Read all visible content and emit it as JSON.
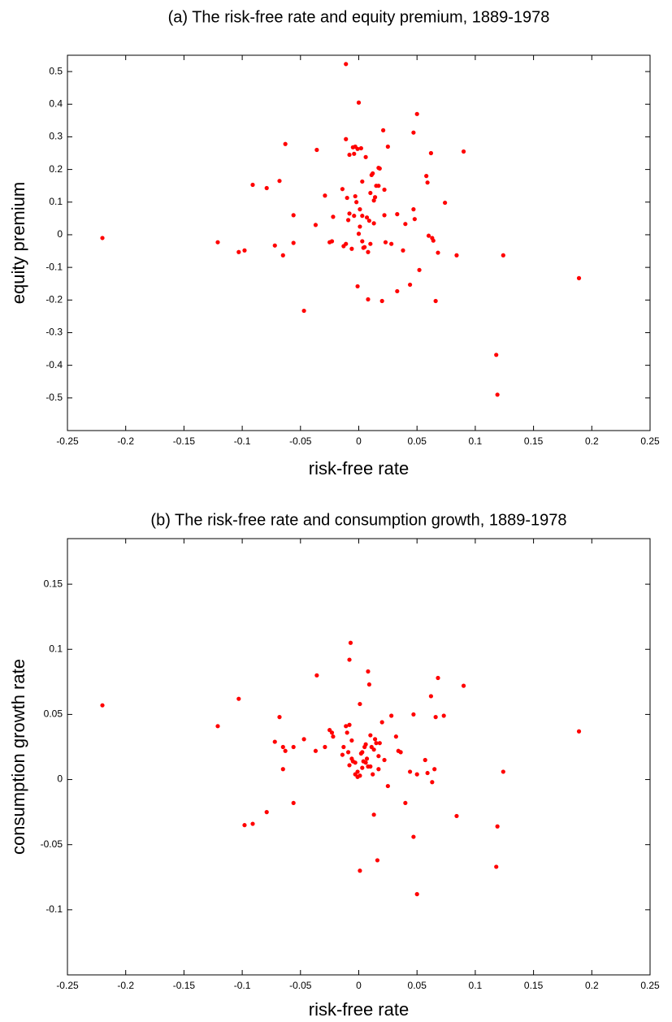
{
  "chart_data": [
    {
      "type": "scatter",
      "title": "(a)  The risk-free rate and equity premium, 1889-1978",
      "x_label": "risk-free rate",
      "y_label": "equity premium",
      "color": "#ff0000",
      "xlim": [
        -0.25,
        0.25
      ],
      "ylim": [
        -0.6,
        0.55
      ],
      "xticks": [
        -0.25,
        -0.2,
        -0.15,
        -0.1,
        -0.05,
        0,
        0.05,
        0.1,
        0.15,
        0.2,
        0.25
      ],
      "yticks": [
        -0.5,
        -0.4,
        -0.3,
        -0.2,
        -0.1,
        0,
        0.1,
        0.2,
        0.3,
        0.4,
        0.5
      ],
      "x": [
        -0.22,
        -0.121,
        -0.103,
        -0.098,
        -0.091,
        -0.079,
        -0.072,
        -0.068,
        -0.065,
        -0.063,
        -0.056,
        -0.056,
        -0.047,
        -0.037,
        -0.036,
        -0.029,
        -0.025,
        -0.023,
        -0.022,
        -0.014,
        -0.013,
        -0.011,
        -0.011,
        -0.011,
        -0.01,
        -0.009,
        -0.008,
        -0.008,
        -0.004,
        -0.006,
        -0.005,
        -0.004,
        -0.003,
        -0.003,
        -0.002,
        -0.001,
        -0.001,
        0,
        0,
        0.001,
        0.001,
        0.002,
        0.003,
        0.003,
        0.003,
        0.004,
        0.005,
        0.006,
        0.007,
        0.008,
        0.009,
        0.008,
        0.01,
        0.01,
        0.011,
        0.012,
        0.013,
        0.013,
        0.014,
        0.015,
        0.017,
        0.017,
        0.018,
        0.02,
        0.021,
        0.022,
        0.022,
        0.023,
        0.025,
        0.028,
        0.033,
        0.033,
        0.038,
        0.04,
        0.044,
        0.047,
        0.047,
        0.048,
        0.05,
        0.052,
        0.058,
        0.059,
        0.06,
        0.062,
        0.063,
        0.064,
        0.066,
        0.068,
        0.074,
        0.084,
        0.09,
        0.118,
        0.119,
        0.124,
        0.189
      ],
      "y": [
        -0.01,
        -0.023,
        -0.053,
        -0.048,
        0.153,
        0.143,
        -0.033,
        0.165,
        -0.063,
        0.278,
        0.06,
        -0.025,
        -0.233,
        0.03,
        0.26,
        0.12,
        -0.023,
        -0.02,
        0.055,
        0.14,
        -0.035,
        -0.028,
        0.293,
        0.523,
        0.113,
        0.045,
        0.065,
        0.245,
        0.248,
        -0.043,
        0.268,
        0.058,
        0.27,
        0.118,
        0.1,
        -0.158,
        0.263,
        0.405,
        0.003,
        0.025,
        0.078,
        0.265,
        0.058,
        -0.02,
        0.163,
        -0.04,
        -0.038,
        0.238,
        0.053,
        -0.053,
        0.043,
        -0.198,
        -0.028,
        0.128,
        0.183,
        0.188,
        0.105,
        0.035,
        0.115,
        0.15,
        0.15,
        0.205,
        0.203,
        -0.203,
        0.32,
        0.138,
        0.06,
        -0.023,
        0.27,
        -0.028,
        -0.173,
        0.063,
        -0.048,
        0.033,
        -0.153,
        0.313,
        0.078,
        0.048,
        0.37,
        -0.108,
        0.18,
        0.16,
        -0.003,
        0.25,
        -0.01,
        -0.018,
        -0.203,
        -0.055,
        0.098,
        -0.063,
        0.255,
        -0.368,
        -0.49,
        -0.063,
        -0.133
      ]
    },
    {
      "type": "scatter",
      "title": "(b)  The risk-free rate and consumption growth, 1889-1978",
      "x_label": "risk-free rate",
      "y_label": "consumption growth rate",
      "color": "#ff0000",
      "xlim": [
        -0.25,
        0.25
      ],
      "ylim": [
        -0.15,
        0.185
      ],
      "xticks": [
        -0.25,
        -0.2,
        -0.15,
        -0.1,
        -0.05,
        0,
        0.05,
        0.1,
        0.15,
        0.2,
        0.25
      ],
      "yticks": [
        -0.1,
        -0.05,
        0,
        0.05,
        0.1,
        0.15
      ],
      "x": [
        -0.22,
        -0.121,
        -0.103,
        -0.098,
        -0.091,
        -0.079,
        -0.072,
        -0.068,
        -0.065,
        -0.065,
        -0.063,
        -0.056,
        -0.056,
        -0.047,
        -0.037,
        -0.036,
        -0.029,
        -0.025,
        -0.023,
        -0.022,
        -0.014,
        -0.013,
        -0.011,
        -0.01,
        -0.009,
        -0.008,
        -0.008,
        -0.006,
        -0.006,
        -0.005,
        -0.008,
        -0.007,
        -0.003,
        -0.003,
        -0.001,
        -0.001,
        0.001,
        0.001,
        0.001,
        0.002,
        0.003,
        0.003,
        0.004,
        0.005,
        0.006,
        0.006,
        0.007,
        0.008,
        0.008,
        0.009,
        0.01,
        0.01,
        0.011,
        0.012,
        0.013,
        0.013,
        0.014,
        0.015,
        0.016,
        0.017,
        0.017,
        0.018,
        0.02,
        0.022,
        0.025,
        0.028,
        0.032,
        0.034,
        0.036,
        0.04,
        0.044,
        0.047,
        0.047,
        0.05,
        0.05,
        0.057,
        0.059,
        0.062,
        0.063,
        0.065,
        0.066,
        0.068,
        0.073,
        0.084,
        0.09,
        0.118,
        0.119,
        0.124,
        0.189
      ],
      "y": [
        0.057,
        0.041,
        0.062,
        -0.035,
        -0.034,
        -0.025,
        0.029,
        0.048,
        0.025,
        0.008,
        0.022,
        0.025,
        -0.018,
        0.031,
        0.022,
        0.08,
        0.025,
        0.038,
        0.036,
        0.033,
        0.019,
        0.025,
        0.041,
        0.036,
        0.021,
        0.042,
        0.011,
        0.03,
        0.016,
        0.014,
        0.092,
        0.105,
        0.013,
        0.004,
        0.002,
        0.006,
        0.058,
        -0.07,
        0.003,
        0.02,
        0.009,
        0.021,
        0.014,
        0.025,
        0.013,
        0.027,
        0.016,
        0.01,
        0.083,
        0.073,
        0.034,
        0.01,
        0.025,
        0.004,
        0.023,
        -0.027,
        0.031,
        0.028,
        -0.062,
        0.008,
        0.018,
        0.028,
        0.044,
        0.015,
        -0.005,
        0.049,
        0.033,
        0.022,
        0.021,
        -0.018,
        0.006,
        -0.044,
        0.05,
        -0.088,
        0.004,
        0.015,
        0.005,
        0.064,
        -0.002,
        0.008,
        0.048,
        0.078,
        0.049,
        -0.028,
        0.072,
        -0.067,
        -0.036,
        0.006,
        0.037
      ]
    }
  ]
}
